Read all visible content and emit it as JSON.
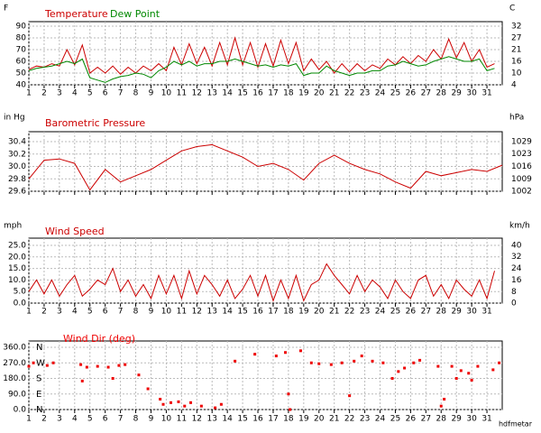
{
  "footer": "hdfmetar",
  "chart_data": [
    {
      "type": "line",
      "y_unit": "F",
      "y2_unit": "C",
      "x": [
        1,
        1.5,
        2,
        2.5,
        3,
        3.5,
        4,
        4.5,
        5,
        5.5,
        6,
        6.5,
        7,
        7.5,
        8,
        8.5,
        9,
        9.5,
        10,
        10.5,
        11,
        11.5,
        12,
        12.5,
        13,
        13.5,
        14,
        14.5,
        15,
        15.5,
        16,
        16.5,
        17,
        17.5,
        18,
        18.5,
        19,
        19.5,
        20,
        20.5,
        21,
        21.5,
        22,
        22.5,
        23,
        23.5,
        24,
        24.5,
        25,
        25.5,
        26,
        26.5,
        27,
        27.5,
        28,
        28.5,
        29,
        29.5,
        30,
        30.5,
        31,
        31.5
      ],
      "series": [
        {
          "name": "Temperature",
          "color": "#cc0000",
          "values": [
            53,
            56,
            55,
            58,
            56,
            70,
            57,
            74,
            50,
            55,
            50,
            56,
            49,
            55,
            50,
            56,
            52,
            58,
            52,
            72,
            57,
            75,
            58,
            72,
            56,
            76,
            57,
            80,
            57,
            76,
            55,
            75,
            56,
            78,
            58,
            76,
            52,
            62,
            53,
            60,
            50,
            58,
            51,
            58,
            52,
            57,
            54,
            62,
            57,
            64,
            58,
            65,
            60,
            70,
            62,
            79,
            63,
            76,
            60,
            70,
            55,
            58
          ]
        },
        {
          "name": "Dew Point",
          "color": "#008800",
          "values": [
            52,
            54,
            55,
            56,
            58,
            60,
            58,
            62,
            46,
            44,
            42,
            45,
            47,
            48,
            50,
            49,
            46,
            52,
            55,
            60,
            57,
            60,
            56,
            58,
            58,
            60,
            60,
            62,
            60,
            58,
            56,
            57,
            55,
            57,
            56,
            58,
            48,
            50,
            50,
            56,
            52,
            50,
            48,
            50,
            50,
            52,
            52,
            56,
            57,
            60,
            58,
            56,
            57,
            60,
            62,
            64,
            62,
            60,
            60,
            62,
            52,
            54
          ]
        }
      ],
      "xlim": [
        1,
        32
      ],
      "xticks": [
        1,
        2,
        3,
        4,
        5,
        6,
        7,
        8,
        9,
        10,
        11,
        12,
        13,
        14,
        15,
        16,
        17,
        18,
        19,
        20,
        21,
        22,
        23,
        24,
        25,
        26,
        27,
        28,
        29,
        30,
        31
      ],
      "xtick_labels": true,
      "ylim": [
        40,
        90
      ],
      "yticks": [
        40,
        50,
        60,
        70,
        80,
        90
      ],
      "y2lim": [
        4.4,
        32.2
      ],
      "y2ticks": [
        {
          "value": 4.4,
          "label": "4"
        },
        {
          "value": 10,
          "label": "10"
        },
        {
          "value": 15.6,
          "label": "16"
        },
        {
          "value": 21.1,
          "label": "21"
        },
        {
          "value": 26.7,
          "label": "27"
        },
        {
          "value": 32.2,
          "label": "32"
        }
      ],
      "grid": true
    },
    {
      "type": "line",
      "title": "Barometric Pressure",
      "color": "#cc0000",
      "y_unit": "in Hg",
      "y2_unit": "hPa",
      "x": [
        1,
        2,
        3,
        4,
        5,
        6,
        7,
        8,
        9,
        10,
        11,
        12,
        13,
        14,
        15,
        16,
        17,
        18,
        19,
        20,
        21,
        22,
        23,
        24,
        25,
        26,
        27,
        28,
        29,
        30,
        31,
        32
      ],
      "series": [
        {
          "name": "Barometric Pressure",
          "color": "#cc0000",
          "values": [
            29.8,
            30.1,
            30.12,
            30.05,
            29.62,
            29.95,
            29.75,
            29.85,
            29.95,
            30.1,
            30.25,
            30.32,
            30.35,
            30.25,
            30.15,
            30,
            30.05,
            29.95,
            29.78,
            30.05,
            30.18,
            30.05,
            29.95,
            29.88,
            29.75,
            29.65,
            29.92,
            29.85,
            29.9,
            29.95,
            29.92,
            30.02
          ]
        }
      ],
      "xlim": [
        1,
        32
      ],
      "xticks": [
        1,
        2,
        3,
        4,
        5,
        6,
        7,
        8,
        9,
        10,
        11,
        12,
        13,
        14,
        15,
        16,
        17,
        18,
        19,
        20,
        21,
        22,
        23,
        24,
        25,
        26,
        27,
        28,
        29,
        30,
        31
      ],
      "xtick_labels": false,
      "ylim": [
        29.6,
        30.4
      ],
      "yticks": [
        29.6,
        29.8,
        {
          "value": 30,
          "label": "30.0"
        },
        30.2,
        30.4
      ],
      "y2lim": [
        1002.4,
        1029.4
      ],
      "y2ticks": [
        {
          "value": 1002.4,
          "label": "1002"
        },
        {
          "value": 1009.1,
          "label": "1009"
        },
        {
          "value": 1015.9,
          "label": "1016"
        },
        {
          "value": 1022.7,
          "label": "1023"
        },
        {
          "value": 1029.4,
          "label": "1029"
        }
      ],
      "grid": true
    },
    {
      "type": "line",
      "title": "Wind Speed",
      "color": "#cc0000",
      "y_unit": "mph",
      "y2_unit": "km/h",
      "x": [
        1,
        1.5,
        2,
        2.5,
        3,
        3.5,
        4,
        4.5,
        5,
        5.5,
        6,
        6.5,
        7,
        7.5,
        8,
        8.5,
        9,
        9.5,
        10,
        10.5,
        11,
        11.5,
        12,
        12.5,
        13,
        13.5,
        14,
        14.5,
        15,
        15.5,
        16,
        16.5,
        17,
        17.5,
        18,
        18.5,
        19,
        19.5,
        20,
        20.5,
        21,
        21.5,
        22,
        22.5,
        23,
        23.5,
        24,
        24.5,
        25,
        25.5,
        26,
        26.5,
        27,
        27.5,
        28,
        28.5,
        29,
        29.5,
        30,
        30.5,
        31,
        31.5
      ],
      "series": [
        {
          "name": "Wind Speed",
          "color": "#cc0000",
          "values": [
            5,
            10,
            4,
            10,
            3,
            8,
            12,
            3,
            6,
            10,
            8,
            15,
            5,
            10,
            3,
            8,
            2,
            12,
            4,
            12,
            2,
            14,
            4,
            12,
            8,
            3,
            10,
            2,
            6,
            12,
            3,
            12,
            1,
            10,
            2,
            12,
            1,
            8,
            10,
            17,
            12,
            8,
            4,
            12,
            5,
            10,
            7,
            2,
            10,
            5,
            2,
            10,
            12,
            3,
            8,
            2,
            10,
            6,
            3,
            10,
            2,
            14
          ]
        }
      ],
      "xlim": [
        1,
        32
      ],
      "xticks": [
        1,
        2,
        3,
        4,
        5,
        6,
        7,
        8,
        9,
        10,
        11,
        12,
        13,
        14,
        15,
        16,
        17,
        18,
        19,
        20,
        21,
        22,
        23,
        24,
        25,
        26,
        27,
        28,
        29,
        30,
        31
      ],
      "xtick_labels": true,
      "ylim": [
        0,
        25
      ],
      "yticks": [
        {
          "value": 0,
          "label": "0.0"
        },
        {
          "value": 5,
          "label": "5.0"
        },
        {
          "value": 10,
          "label": "10.0"
        },
        {
          "value": 15,
          "label": "15.0"
        },
        {
          "value": 20,
          "label": "20.0"
        },
        {
          "value": 25,
          "label": "25.0"
        }
      ],
      "y2lim": [
        0,
        40.2
      ],
      "y2ticks": [
        {
          "value": 0,
          "label": "0"
        },
        {
          "value": 8,
          "label": "8"
        },
        {
          "value": 16.1,
          "label": "16"
        },
        {
          "value": 24.1,
          "label": "24"
        },
        {
          "value": 32.2,
          "label": "32"
        },
        {
          "value": 40.2,
          "label": "40"
        }
      ],
      "grid": true
    },
    {
      "type": "scatter",
      "title": "Wind Dir (deg)",
      "color": "#ee0000",
      "x": [
        1,
        1.3,
        2.2,
        2.6,
        4.4,
        4.5,
        4.8,
        5.5,
        6.2,
        6.5,
        6.9,
        7.3,
        8.2,
        8.8,
        9.6,
        9.8,
        10.3,
        10.8,
        11.2,
        11.6,
        12.3,
        13.2,
        13.6,
        14.5,
        15.8,
        17.2,
        17.8,
        18,
        18.1,
        18.8,
        19.5,
        20,
        20.8,
        21.5,
        22,
        22.3,
        22.8,
        23.5,
        24.2,
        24.8,
        25.2,
        25.6,
        26.2,
        26.6,
        27.8,
        28,
        28.2,
        28.7,
        29,
        29.3,
        29.8,
        30,
        30.4,
        31.4,
        31.8
      ],
      "values": [
        250,
        270,
        255,
        270,
        260,
        165,
        245,
        250,
        245,
        180,
        255,
        260,
        200,
        120,
        60,
        30,
        40,
        45,
        20,
        40,
        20,
        10,
        30,
        280,
        320,
        310,
        330,
        90,
        0,
        340,
        270,
        265,
        260,
        270,
        80,
        280,
        310,
        280,
        270,
        180,
        220,
        240,
        270,
        285,
        250,
        20,
        60,
        250,
        180,
        225,
        210,
        170,
        250,
        230,
        270
      ],
      "xlim": [
        1,
        32
      ],
      "xticks": [
        1,
        2,
        3,
        4,
        5,
        6,
        7,
        8,
        9,
        10,
        11,
        12,
        13,
        14,
        15,
        16,
        17,
        18,
        19,
        20,
        21,
        22,
        23,
        24,
        25,
        26,
        27,
        28,
        29,
        30,
        31
      ],
      "xtick_labels": true,
      "ylim": [
        0,
        360
      ],
      "yticks": [
        {
          "value": 0,
          "label": "0.0"
        },
        {
          "value": 90,
          "label": "90.0"
        },
        {
          "value": 180,
          "label": "180.0"
        },
        {
          "value": 270,
          "label": "270.0"
        },
        {
          "value": 360,
          "label": "360.0"
        }
      ],
      "y2lim": [
        0,
        360
      ],
      "y2ticks": [
        {
          "value": 0,
          "label": "N"
        },
        {
          "value": 90,
          "label": "E"
        },
        {
          "value": 180,
          "label": "S"
        },
        {
          "value": 270,
          "label": "W"
        },
        {
          "value": 360,
          "label": "N"
        }
      ],
      "grid": true
    }
  ]
}
